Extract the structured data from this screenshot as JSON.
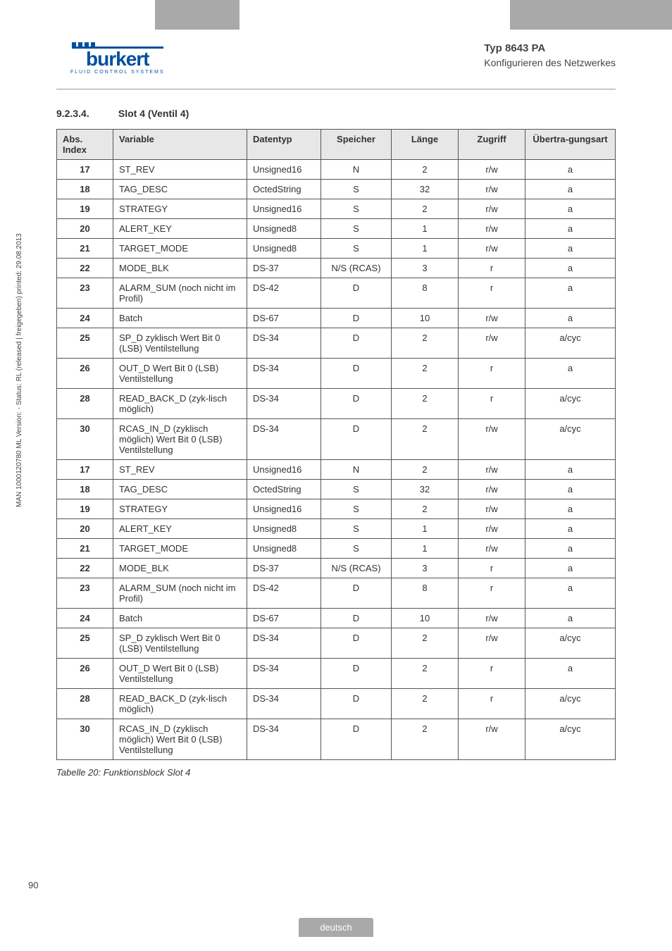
{
  "header": {
    "logo_text": "burkert",
    "logo_sub": "FLUID CONTROL SYSTEMS",
    "typ": "Typ 8643 PA",
    "subtitle": "Konfigurieren des Netzwerkes"
  },
  "section": {
    "number": "9.2.3.4.",
    "title": "Slot 4 (Ventil 4)"
  },
  "table": {
    "columns": [
      "Abs. Index",
      "Variable",
      "Datentyp",
      "Speicher",
      "Länge",
      "Zugriff",
      "Übertra-gungsart"
    ],
    "rows": [
      [
        "17",
        "ST_REV",
        "Unsigned16",
        "N",
        "2",
        "r/w",
        "a"
      ],
      [
        "18",
        "TAG_DESC",
        "OctedString",
        "S",
        "32",
        "r/w",
        "a"
      ],
      [
        "19",
        "STRATEGY",
        "Unsigned16",
        "S",
        "2",
        "r/w",
        "a"
      ],
      [
        "20",
        "ALERT_KEY",
        "Unsigned8",
        "S",
        "1",
        "r/w",
        "a"
      ],
      [
        "21",
        "TARGET_MODE",
        "Unsigned8",
        "S",
        "1",
        "r/w",
        "a"
      ],
      [
        "22",
        "MODE_BLK",
        "DS-37",
        "N/S (RCAS)",
        "3",
        "r",
        "a"
      ],
      [
        "23",
        "ALARM_SUM (noch nicht im Profil)",
        "DS-42",
        "D",
        "8",
        "r",
        "a"
      ],
      [
        "24",
        "Batch",
        "DS-67",
        "D",
        "10",
        "r/w",
        "a"
      ],
      [
        "25",
        "SP_D zyklisch Wert Bit 0 (LSB) Ventilstellung",
        "DS-34",
        "D",
        "2",
        "r/w",
        "a/cyc"
      ],
      [
        "26",
        "OUT_D Wert Bit 0 (LSB) Ventilstellung",
        "DS-34",
        "D",
        "2",
        "r",
        "a"
      ],
      [
        "28",
        "READ_BACK_D (zyk-lisch möglich)",
        "DS-34",
        "D",
        "2",
        "r",
        "a/cyc"
      ],
      [
        "30",
        "RCAS_IN_D (zyklisch möglich) Wert Bit 0 (LSB) Ventilstellung",
        "DS-34",
        "D",
        "2",
        "r/w",
        "a/cyc"
      ],
      [
        "17",
        "ST_REV",
        "Unsigned16",
        "N",
        "2",
        "r/w",
        "a"
      ],
      [
        "18",
        "TAG_DESC",
        "OctedString",
        "S",
        "32",
        "r/w",
        "a"
      ],
      [
        "19",
        "STRATEGY",
        "Unsigned16",
        "S",
        "2",
        "r/w",
        "a"
      ],
      [
        "20",
        "ALERT_KEY",
        "Unsigned8",
        "S",
        "1",
        "r/w",
        "a"
      ],
      [
        "21",
        "TARGET_MODE",
        "Unsigned8",
        "S",
        "1",
        "r/w",
        "a"
      ],
      [
        "22",
        "MODE_BLK",
        "DS-37",
        "N/S (RCAS)",
        "3",
        "r",
        "a"
      ],
      [
        "23",
        "ALARM_SUM (noch nicht im Profil)",
        "DS-42",
        "D",
        "8",
        "r",
        "a"
      ],
      [
        "24",
        "Batch",
        "DS-67",
        "D",
        "10",
        "r/w",
        "a"
      ],
      [
        "25",
        "SP_D zyklisch Wert Bit 0 (LSB) Ventilstellung",
        "DS-34",
        "D",
        "2",
        "r/w",
        "a/cyc"
      ],
      [
        "26",
        "OUT_D Wert Bit 0 (LSB) Ventilstellung",
        "DS-34",
        "D",
        "2",
        "r",
        "a"
      ],
      [
        "28",
        "READ_BACK_D (zyk-lisch möglich)",
        "DS-34",
        "D",
        "2",
        "r",
        "a/cyc"
      ],
      [
        "30",
        "RCAS_IN_D (zyklisch möglich) Wert Bit 0 (LSB) Ventilstellung",
        "DS-34",
        "D",
        "2",
        "r/w",
        "a/cyc"
      ]
    ]
  },
  "caption": "Tabelle 20: Funktionsblock Slot 4",
  "sidetext": "MAN 1000120780 ML Version: - Status: RL (released | freigegeben) printed: 29.08.2013",
  "pagenum": "90",
  "footer": "deutsch"
}
